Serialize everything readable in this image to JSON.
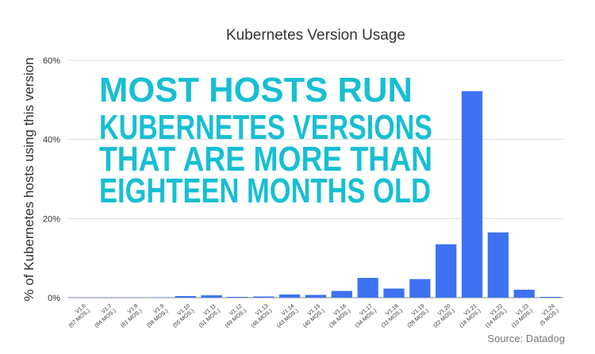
{
  "chart_data": {
    "type": "bar",
    "title": "Kubernetes Version Usage",
    "y_axis_label": "% of Kubernetes hosts using this version",
    "annotation": [
      "MOST HOSTS RUN",
      "KUBERNETES VERSIONS",
      "THAT ARE MORE THAN",
      "EIGHTEEN MONTHS OLD"
    ],
    "source": "Source: Datadog",
    "categories": [
      "V1.6",
      "V1.7",
      "V1.8",
      "V1.9",
      "V1.10",
      "V1.11",
      "V1.12",
      "V1.13",
      "V1.14",
      "V1.15",
      "V1.16",
      "V1.17",
      "V1.18",
      "V1.19",
      "V1.20",
      "V1.21",
      "V1.22",
      "V1.23",
      "V1.24"
    ],
    "category_ages": [
      "(67 MOS.)",
      "(64 MOS.)",
      "(61 MOS.)",
      "(58 MOS.)",
      "(55 MOS.)",
      "(51 MOS.)",
      "(49 MOS.)",
      "(46 MOS.)",
      "(43 MOS.)",
      "(40 MOS.)",
      "(36 MOS.)",
      "(34 MOS.)",
      "(31 MOS.)",
      "(28 MOS.)",
      "(22 MOS.)",
      "(18 MOS.)",
      "(14 MOS.)",
      "(10 MOS.)",
      "(5 MOS.)"
    ],
    "values": [
      0.05,
      0.05,
      0.05,
      0.1,
      0.4,
      0.6,
      0.2,
      0.3,
      0.8,
      0.7,
      1.7,
      5.0,
      2.3,
      4.7,
      13.5,
      52.2,
      16.5,
      2.0,
      0.2
    ],
    "color": "#3f72f2",
    "ylim": [
      0,
      60
    ],
    "yticks": [
      {
        "value": 0,
        "label": "0%"
      },
      {
        "value": 20,
        "label": "20%"
      },
      {
        "value": 40,
        "label": "40%"
      },
      {
        "value": 60,
        "label": "60%"
      }
    ],
    "grid": true
  }
}
